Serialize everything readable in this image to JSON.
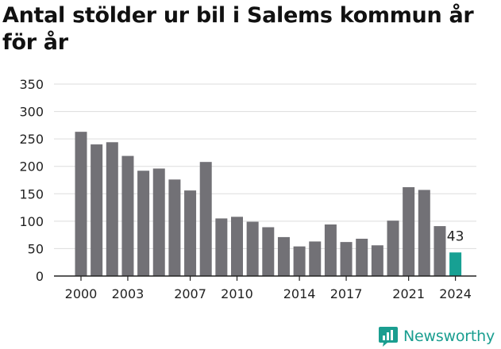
{
  "title": "Antal stölder ur bil i Salems kommun år för år",
  "brand": {
    "name": "Newsworthy",
    "color": "#1a9e90"
  },
  "colors": {
    "bar": "#727176",
    "highlight": "#17a093",
    "grid": "#dddddd",
    "axis": "#222222"
  },
  "chart_data": {
    "type": "bar",
    "title": "Antal stölder ur bil i Salems kommun år för år",
    "xlabel": "",
    "ylabel": "",
    "ylim": [
      0,
      350
    ],
    "yticks": [
      0,
      50,
      100,
      150,
      200,
      250,
      300,
      350
    ],
    "grid": true,
    "legend": "none",
    "categories": [
      "2000",
      "2001",
      "2002",
      "2003",
      "2004",
      "2005",
      "2006",
      "2007",
      "2008",
      "2009",
      "2010",
      "2011",
      "2012",
      "2013",
      "2014",
      "2015",
      "2016",
      "2017",
      "2018",
      "2019",
      "2020",
      "2021",
      "2022",
      "2023",
      "2024"
    ],
    "values": [
      263,
      240,
      244,
      219,
      192,
      196,
      176,
      156,
      208,
      105,
      108,
      99,
      89,
      71,
      54,
      63,
      94,
      62,
      68,
      56,
      101,
      162,
      157,
      91,
      43
    ],
    "xtick_labels": [
      "2000",
      "2003",
      "2007",
      "2010",
      "2014",
      "2017",
      "2021",
      "2024"
    ],
    "highlight": {
      "category": "2024",
      "label": "43"
    }
  }
}
